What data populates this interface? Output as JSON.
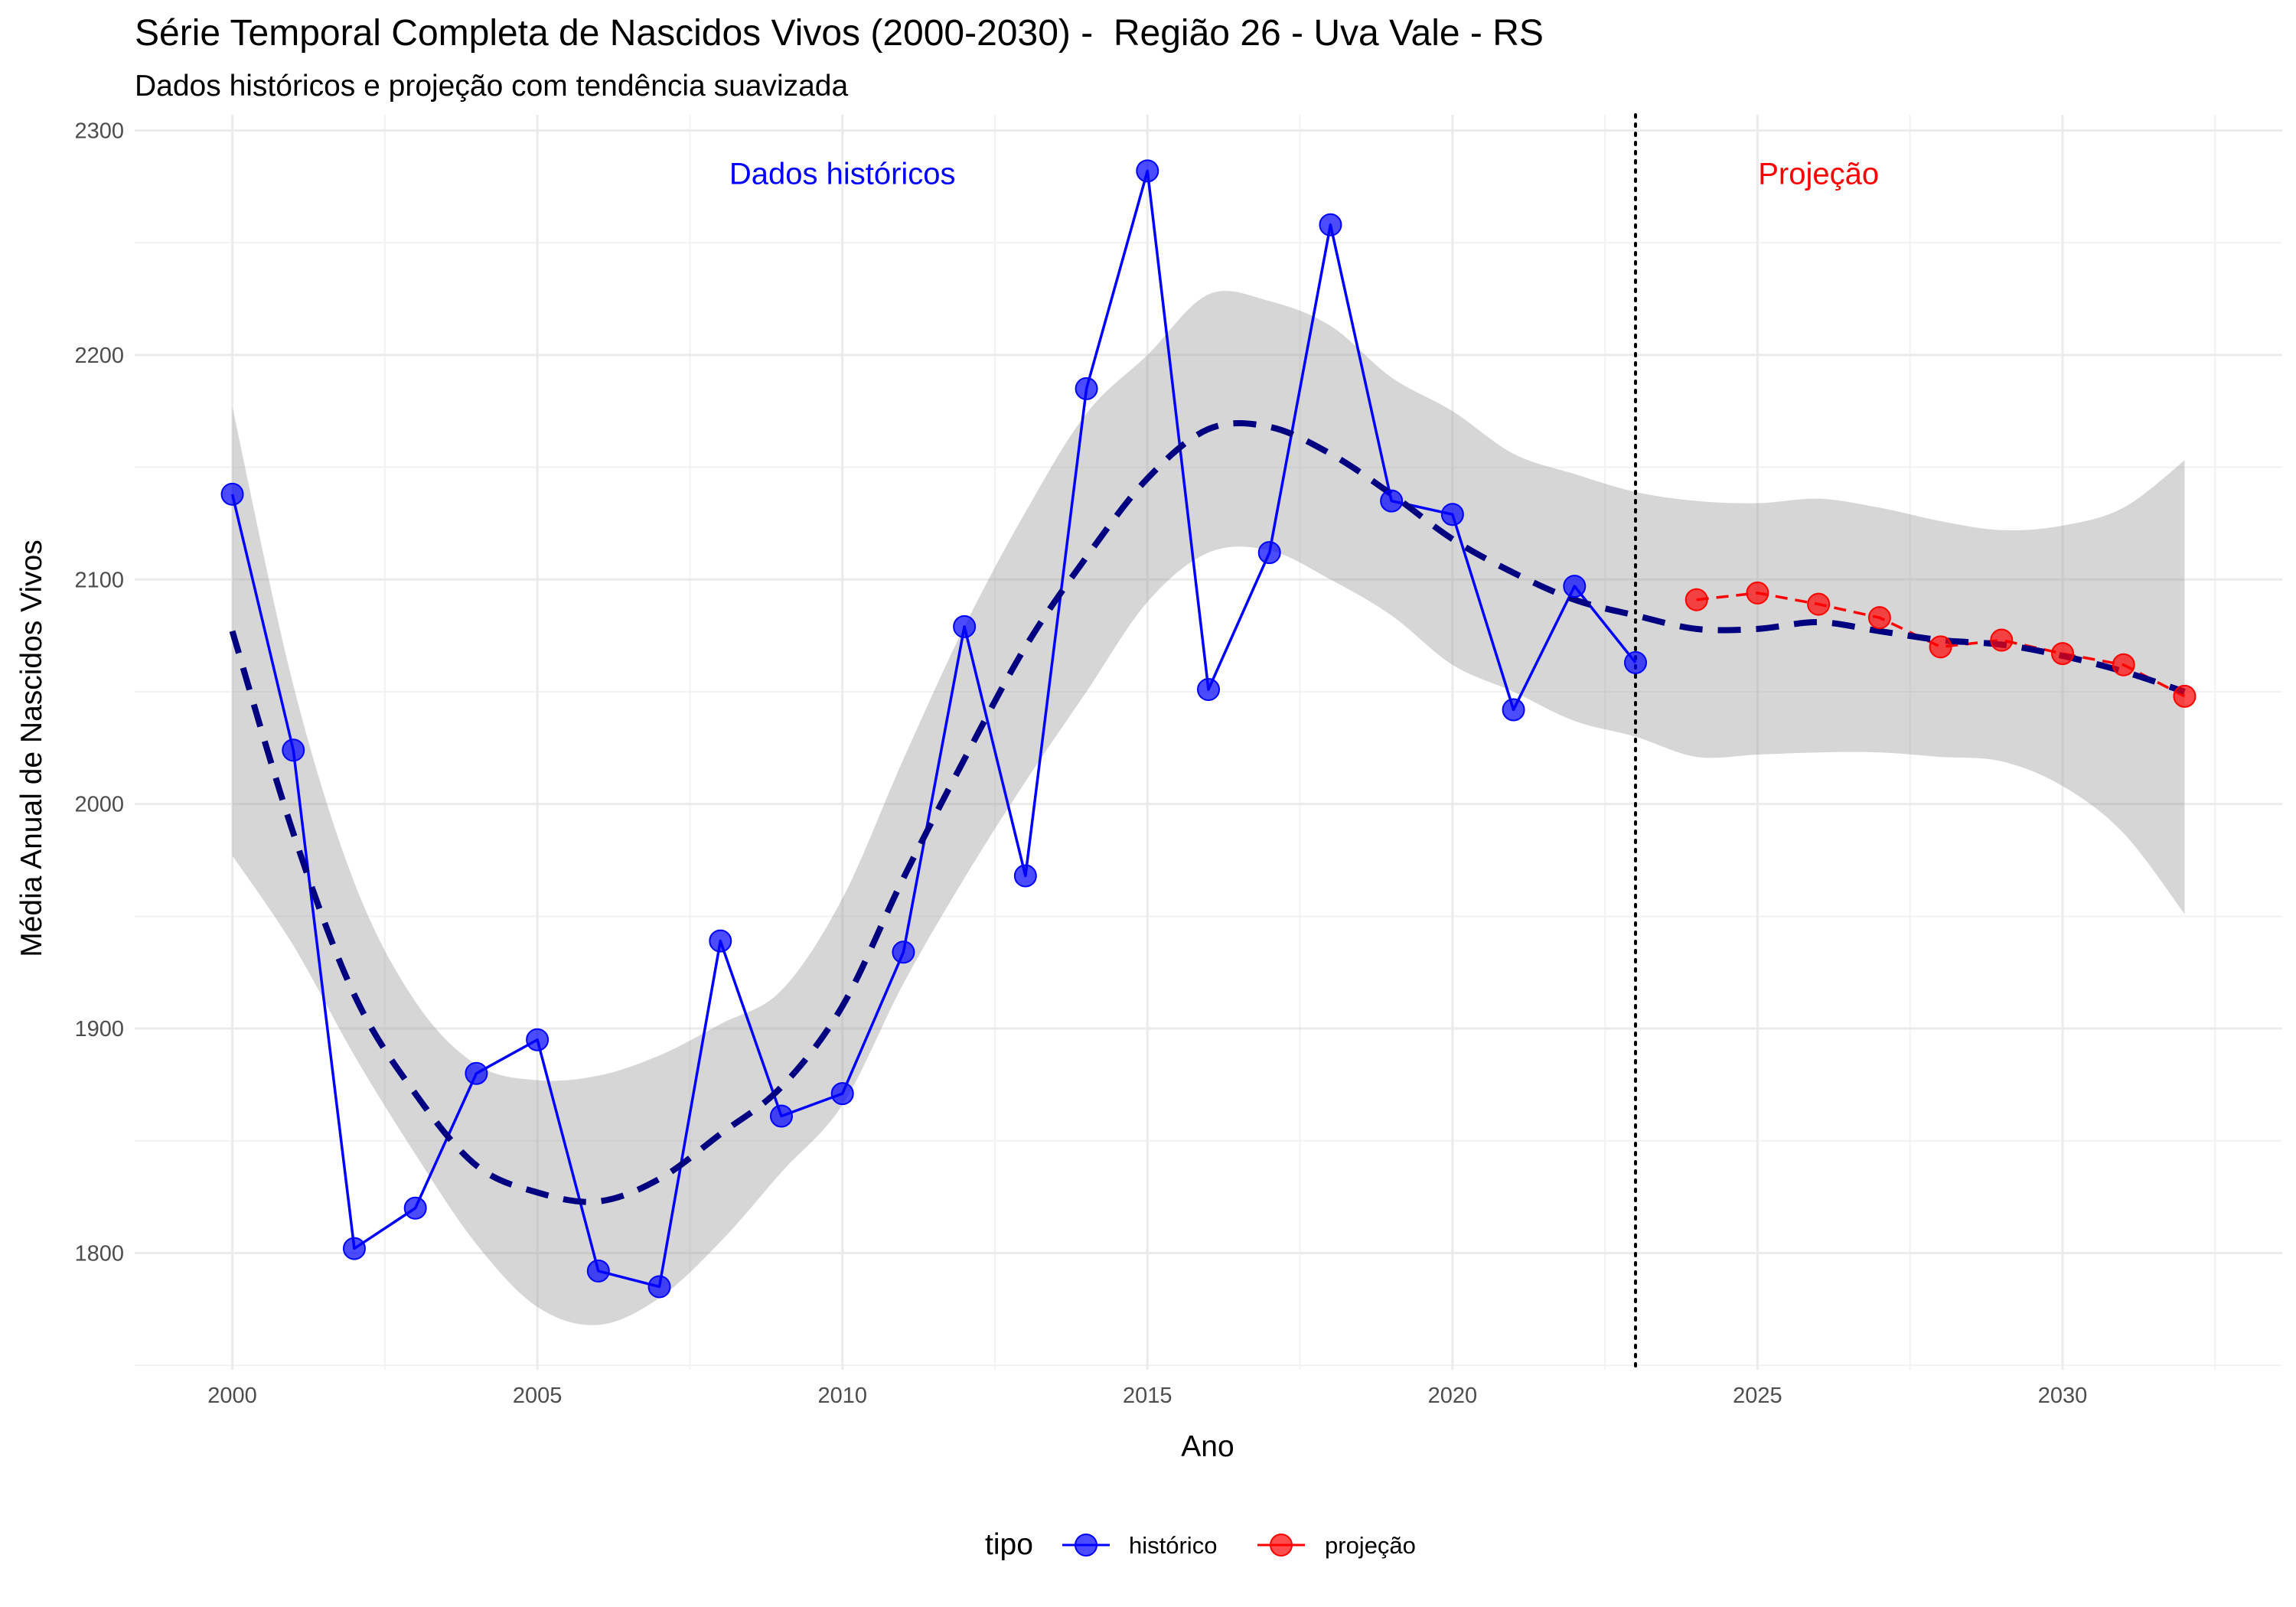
{
  "chart_data": {
    "type": "line",
    "title": "Série Temporal Completa de Nascidos Vivos (2000-2030) -  Região 26 - Uva Vale - RS",
    "subtitle": "Dados históricos e projeção com tendência suavizada",
    "xlabel": "Ano",
    "ylabel": "Média Anual de Nascidos Vivos",
    "xlim": [
      1998.4,
      2033.6
    ],
    "ylim": [
      1748,
      2307
    ],
    "x_ticks": [
      2000,
      2005,
      2010,
      2015,
      2020,
      2025,
      2030
    ],
    "y_ticks": [
      1800,
      1900,
      2000,
      2100,
      2200,
      2300
    ],
    "grid": true,
    "legend": {
      "title": "tipo",
      "position": "bottom",
      "entries": [
        "histórico",
        "projeção"
      ]
    },
    "annotations": [
      {
        "text": "Dados históricos",
        "x": 2010,
        "y": 2281,
        "color": "#0000ff"
      },
      {
        "text": "Projeção",
        "x": 2026,
        "y": 2281,
        "color": "#ff0000"
      }
    ],
    "vline": {
      "x": 2023,
      "style": "dotted"
    },
    "series": [
      {
        "name": "histórico",
        "color": "#0000ff",
        "style": "solid",
        "x": [
          2000,
          2001,
          2002,
          2003,
          2004,
          2005,
          2006,
          2007,
          2008,
          2009,
          2010,
          2011,
          2012,
          2013,
          2014,
          2015,
          2016,
          2017,
          2018,
          2019,
          2020,
          2021,
          2022,
          2023
        ],
        "values": [
          2138,
          2024,
          1802,
          1820,
          1880,
          1895,
          1792,
          1785,
          1939,
          1861,
          1871,
          1934,
          2079,
          1968,
          2185,
          2282,
          2051,
          2112,
          2258,
          2135,
          2129,
          2042,
          2097,
          2063
        ]
      },
      {
        "name": "projeção",
        "color": "#ff0000",
        "style": "dashed",
        "x": [
          2024,
          2025,
          2026,
          2027,
          2028,
          2029,
          2030,
          2031,
          2032
        ],
        "values": [
          2091,
          2094,
          2089,
          2083,
          2070,
          2073,
          2067,
          2062,
          2048
        ]
      }
    ],
    "trend": {
      "color": "#000080",
      "style": "dashed",
      "x": [
        2000,
        2001,
        2002,
        2003,
        2004,
        2005,
        2006,
        2007,
        2008,
        2009,
        2010,
        2011,
        2012,
        2013,
        2014,
        2015,
        2016,
        2017,
        2018,
        2019,
        2020,
        2021,
        2022,
        2023,
        2024,
        2025,
        2026,
        2027,
        2028,
        2029,
        2030,
        2031,
        2032
      ],
      "values": [
        2077,
        1987,
        1915,
        1871,
        1839,
        1827,
        1823,
        1833,
        1853,
        1874,
        1910,
        1967,
        2020,
        2070,
        2110,
        2145,
        2167,
        2168,
        2156,
        2138,
        2118,
        2103,
        2091,
        2084,
        2078,
        2078,
        2081,
        2077,
        2073,
        2071,
        2066,
        2059,
        2050
      ],
      "ci_lower": [
        1977,
        1937,
        1888,
        1844,
        1804,
        1776,
        1768,
        1780,
        1805,
        1836,
        1866,
        1920,
        1967,
        2010,
        2050,
        2090,
        2112,
        2113,
        2100,
        2084,
        2062,
        2050,
        2037,
        2030,
        2021,
        2022,
        2023,
        2023,
        2021,
        2019,
        2008,
        1987,
        1951
      ],
      "ci_upper": [
        2177,
        2053,
        1965,
        1912,
        1884,
        1877,
        1879,
        1888,
        1902,
        1917,
        1958,
        2020,
        2079,
        2130,
        2174,
        2200,
        2227,
        2224,
        2213,
        2190,
        2175,
        2156,
        2147,
        2139,
        2135,
        2134,
        2136,
        2132,
        2126,
        2122,
        2124,
        2132,
        2153
      ]
    }
  }
}
